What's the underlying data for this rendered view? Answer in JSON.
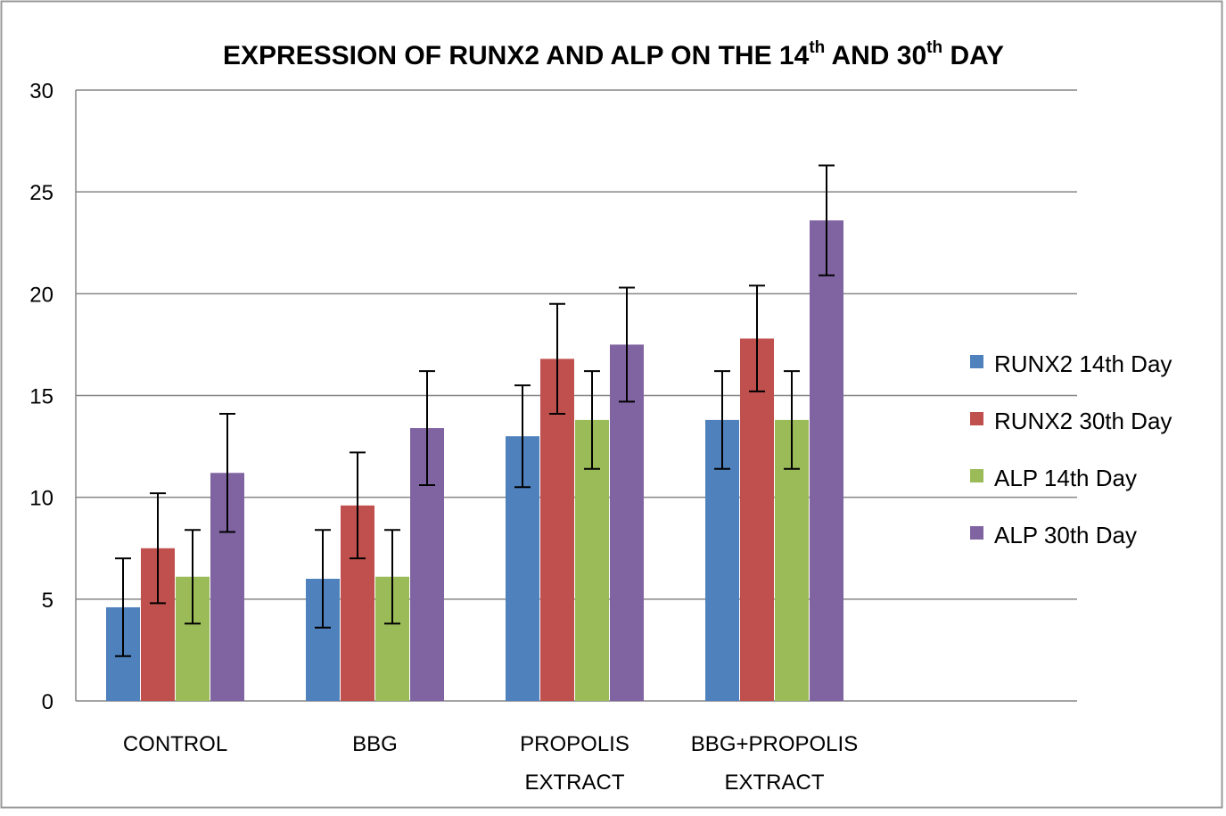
{
  "chart_data": {
    "type": "bar",
    "title": {
      "part1": "EXPRESSION OF RUNX2 AND ALP ON THE 14",
      "sup1": "th",
      "part2": " AND 30",
      "sup2": "th",
      "part3": " DAY"
    },
    "categories": [
      [
        "CONTROL"
      ],
      [
        "BBG"
      ],
      [
        "PROPOLIS",
        "EXTRACT"
      ],
      [
        "BBG+PROPOLIS",
        "EXTRACT"
      ]
    ],
    "series": [
      {
        "name": "RUNX2 14th Day",
        "color": "#4f81bd",
        "values": [
          4.6,
          6.0,
          13.0,
          13.8
        ],
        "errors": [
          2.4,
          2.4,
          2.5,
          2.4
        ]
      },
      {
        "name": "RUNX2 30th Day",
        "color": "#c0504d",
        "values": [
          7.5,
          9.6,
          16.8,
          17.8
        ],
        "errors": [
          2.7,
          2.6,
          2.7,
          2.6
        ]
      },
      {
        "name": "ALP 14th Day",
        "color": "#9bbb59",
        "values": [
          6.1,
          6.1,
          13.8,
          13.8
        ],
        "errors": [
          2.3,
          2.3,
          2.4,
          2.4
        ]
      },
      {
        "name": "ALP 30th Day",
        "color": "#8064a2",
        "values": [
          11.2,
          13.4,
          17.5,
          23.6
        ],
        "errors": [
          2.9,
          2.8,
          2.8,
          2.7
        ]
      }
    ],
    "yticks": [
      "0",
      "5",
      "10",
      "15",
      "20",
      "25",
      "30"
    ],
    "ylim": [
      0,
      30
    ],
    "grid": true,
    "legend_position": "right"
  }
}
